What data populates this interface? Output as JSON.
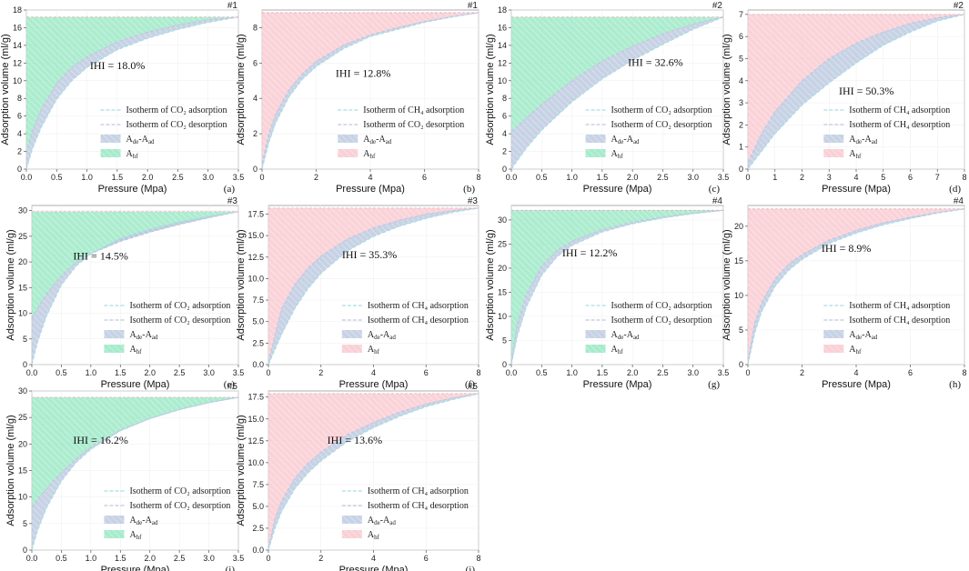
{
  "colors": {
    "co2_fill": "#90e6bf",
    "ch4_fill": "#f8c4cc",
    "hysteresis_fill": "#b9c7de",
    "adsorption_line": "#a8dde4",
    "desorption_line": "#c0c6de"
  },
  "legend_text": {
    "co2_adsorption": "Isotherm of CO₂ adsorption",
    "co2_desorption": "Isotherm of CO₂ desorption",
    "ch4_adsorption": "Isotherm of CH₄ adsorption",
    "ch4_desorption": "Isotherm of CH₄ desorption",
    "ch4_desorption_mislabeled": "Isotherm of CO₂ desorption",
    "hysteresis_area": "Ade-Aad",
    "hf_area": "Ahf"
  },
  "chart_data": [
    {
      "type": "area",
      "panel": "(a)",
      "sample": "#1",
      "gas": "CO2",
      "title": "",
      "xlabel": "Pressure (Mpa)",
      "ylabel": "Adsorption volume (ml/g)",
      "xlim": [
        0,
        3.5
      ],
      "ylim": [
        0,
        18
      ],
      "xticks": [
        "0.0",
        "0.5",
        "1.0",
        "1.5",
        "2.0",
        "2.5",
        "3.0",
        "3.5"
      ],
      "yticks": [
        "0",
        "2",
        "4",
        "6",
        "8",
        "10",
        "12",
        "14",
        "16",
        "18"
      ],
      "annotation": "IHI = 18.0%",
      "series": [
        {
          "name": "Isotherm of CO2 adsorption",
          "x": [
            0,
            0.1,
            0.25,
            0.5,
            0.75,
            1.0,
            1.5,
            2.0,
            2.5,
            3.0,
            3.5
          ],
          "values": [
            0,
            2.3,
            4.8,
            7.9,
            10.0,
            11.5,
            13.5,
            14.8,
            15.8,
            16.6,
            17.2
          ]
        },
        {
          "name": "Isotherm of CO2 desorption",
          "x": [
            0,
            0.1,
            0.25,
            0.5,
            0.75,
            1.0,
            1.5,
            2.0,
            2.5,
            3.0,
            3.5
          ],
          "values": [
            1.8,
            4.3,
            6.8,
            9.7,
            11.5,
            12.7,
            14.4,
            15.5,
            16.3,
            16.9,
            17.2
          ]
        }
      ],
      "legend": [
        "co2_adsorption",
        "co2_desorption",
        "hysteresis_area",
        "hf_area"
      ]
    },
    {
      "type": "area",
      "panel": "(b)",
      "sample": "#1",
      "gas": "CH4",
      "title": "",
      "xlabel": "Pressure (Mpa)",
      "ylabel": "Adsorption volume (ml/g)",
      "xlim": [
        0,
        8
      ],
      "ylim": [
        0,
        9
      ],
      "xticks": [
        "0",
        "2",
        "4",
        "6",
        "8"
      ],
      "yticks": [
        "0",
        "2",
        "4",
        "6",
        "8"
      ],
      "annotation": "IHI = 12.8%",
      "series": [
        {
          "name": "Isotherm of CH4 adsorption",
          "x": [
            0,
            0.25,
            0.5,
            1,
            1.5,
            2,
            3,
            4,
            5,
            6,
            7,
            8
          ],
          "values": [
            0,
            1.5,
            2.6,
            4.1,
            5.1,
            5.8,
            6.8,
            7.5,
            7.9,
            8.3,
            8.6,
            8.85
          ]
        },
        {
          "name": "Isotherm of CH4 desorption",
          "x": [
            0,
            0.25,
            0.5,
            1,
            1.5,
            2,
            3,
            4,
            5,
            6,
            7,
            8
          ],
          "values": [
            0.3,
            2.0,
            3.1,
            4.5,
            5.4,
            6.1,
            7.0,
            7.6,
            8.0,
            8.35,
            8.62,
            8.85
          ]
        }
      ],
      "legend": [
        "ch4_adsorption",
        "ch4_desorption_mislabeled",
        "hysteresis_area",
        "hf_area"
      ]
    },
    {
      "type": "area",
      "panel": "(c)",
      "sample": "#2",
      "gas": "CO2",
      "title": "",
      "xlabel": "Pressure (Mpa)",
      "ylabel": "Adsorption volume (ml/g)",
      "xlim": [
        0,
        3.5
      ],
      "ylim": [
        0,
        18
      ],
      "xticks": [
        "0.0",
        "0.5",
        "1.0",
        "1.5",
        "2.0",
        "2.5",
        "3.0",
        "3.5"
      ],
      "yticks": [
        "0",
        "2",
        "4",
        "6",
        "8",
        "10",
        "12",
        "14",
        "16",
        "18"
      ],
      "annotation": "IHI = 32.6%",
      "series": [
        {
          "name": "Isotherm of CO2 adsorption",
          "x": [
            0,
            0.25,
            0.5,
            1.0,
            1.5,
            2.0,
            2.5,
            3.0,
            3.5
          ],
          "values": [
            0,
            2.4,
            4.4,
            7.6,
            10.2,
            12.3,
            14.1,
            15.8,
            17.2
          ]
        },
        {
          "name": "Isotherm of CO2 desorption",
          "x": [
            0,
            0.25,
            0.5,
            1.0,
            1.5,
            2.0,
            2.5,
            3.0,
            3.5
          ],
          "values": [
            4.2,
            5.8,
            7.3,
            10.0,
            12.2,
            13.9,
            15.3,
            16.4,
            17.2
          ]
        }
      ],
      "legend": [
        "co2_adsorption",
        "co2_desorption",
        "hysteresis_area",
        "hf_area"
      ]
    },
    {
      "type": "area",
      "panel": "(d)",
      "sample": "#2",
      "gas": "CH4",
      "title": "",
      "xlabel": "Pressure (Mpa)",
      "ylabel": "Adsorption volume (ml/g)",
      "xlim": [
        0,
        8
      ],
      "ylim": [
        0,
        7.2
      ],
      "xticks": [
        "0",
        "1",
        "2",
        "3",
        "4",
        "5",
        "6",
        "7",
        "8"
      ],
      "yticks": [
        "0",
        "1",
        "2",
        "3",
        "4",
        "5",
        "6",
        "7"
      ],
      "annotation": "IHI = 50.3%",
      "series": [
        {
          "name": "Isotherm of CH4 adsorption",
          "x": [
            0,
            0.5,
            1,
            2,
            3,
            4,
            5,
            6,
            7,
            8
          ],
          "values": [
            0,
            0.8,
            1.6,
            2.9,
            3.9,
            4.8,
            5.6,
            6.2,
            6.7,
            7.0
          ]
        },
        {
          "name": "Isotherm of CH4 desorption",
          "x": [
            0,
            0.5,
            1,
            2,
            3,
            4,
            5,
            6,
            7,
            8
          ],
          "values": [
            0.3,
            1.6,
            2.6,
            4.0,
            5.0,
            5.7,
            6.2,
            6.6,
            6.85,
            7.0
          ]
        }
      ],
      "legend": [
        "ch4_adsorption",
        "ch4_desorption",
        "hysteresis_area",
        "hf_area"
      ]
    },
    {
      "type": "area",
      "panel": "(e)",
      "sample": "#3",
      "gas": "CO2",
      "title": "",
      "xlabel": "Pressure (Mpa)",
      "ylabel": "Adsorption volume (ml/g)",
      "xlim": [
        0,
        3.5
      ],
      "ylim": [
        0,
        31
      ],
      "xticks": [
        "0.0",
        "0.5",
        "1.0",
        "1.5",
        "2.0",
        "2.5",
        "3.0",
        "3.5"
      ],
      "yticks": [
        "0",
        "5",
        "10",
        "15",
        "20",
        "25",
        "30"
      ],
      "annotation": "IHI = 14.5%",
      "series": [
        {
          "name": "Isotherm of CO2 adsorption",
          "x": [
            0,
            0.1,
            0.25,
            0.5,
            0.75,
            1.0,
            1.5,
            2.0,
            2.5,
            3.0,
            3.5
          ],
          "values": [
            0,
            4.5,
            9.5,
            15.5,
            19.2,
            21.6,
            24.6,
            26.4,
            27.8,
            28.9,
            29.8
          ]
        },
        {
          "name": "Isotherm of CO2 desorption",
          "x": [
            0,
            0.1,
            0.25,
            0.5,
            0.75,
            1.0,
            1.5,
            2.0,
            2.5,
            3.0,
            3.5
          ],
          "values": [
            9.0,
            11.0,
            13.8,
            17.3,
            19.9,
            21.6,
            24.0,
            25.8,
            27.3,
            28.6,
            29.8
          ]
        }
      ],
      "legend": [
        "co2_adsorption",
        "co2_desorption",
        "hysteresis_area",
        "hf_area"
      ]
    },
    {
      "type": "area",
      "panel": "(f)",
      "sample": "#3",
      "gas": "CH4",
      "title": "",
      "xlabel": "Pressure (Mpa)",
      "ylabel": "Adsorption volume (ml/g)",
      "xlim": [
        0,
        8
      ],
      "ylim": [
        0,
        18.5
      ],
      "xticks": [
        "0",
        "2",
        "4",
        "6",
        "8"
      ],
      "yticks": [
        "0.0",
        "2.5",
        "5.0",
        "7.5",
        "10.0",
        "12.5",
        "15.0",
        "17.5"
      ],
      "annotation": "IHI = 35.3%",
      "series": [
        {
          "name": "Isotherm of CH4 adsorption",
          "x": [
            0,
            0.5,
            1,
            1.5,
            2,
            3,
            4,
            5,
            6,
            7,
            8
          ],
          "values": [
            0,
            3.5,
            6.5,
            8.8,
            10.6,
            13.2,
            14.9,
            16.1,
            17.0,
            17.7,
            18.2
          ]
        },
        {
          "name": "Isotherm of CH4 desorption",
          "x": [
            0,
            0.5,
            1,
            1.5,
            2,
            3,
            4,
            5,
            6,
            7,
            8
          ],
          "values": [
            0.3,
            6.5,
            9.3,
            11.2,
            12.6,
            14.6,
            15.9,
            16.8,
            17.5,
            17.9,
            18.2
          ]
        }
      ],
      "legend": [
        "ch4_adsorption",
        "ch4_desorption",
        "hysteresis_area",
        "hf_area"
      ]
    },
    {
      "type": "area",
      "panel": "(g)",
      "sample": "#4",
      "gas": "CO2",
      "title": "",
      "xlabel": "Pressure (Mpa)",
      "ylabel": "Adsorption volume (ml/g)",
      "xlim": [
        0,
        3.5
      ],
      "ylim": [
        0,
        33
      ],
      "xticks": [
        "0.0",
        "0.5",
        "1.0",
        "1.5",
        "2.0",
        "2.5",
        "3.0",
        "3.5"
      ],
      "yticks": [
        "0",
        "5",
        "10",
        "15",
        "20",
        "25",
        "30"
      ],
      "annotation": "IHI = 12.2%",
      "series": [
        {
          "name": "Isotherm of CO2 adsorption",
          "x": [
            0,
            0.1,
            0.25,
            0.5,
            0.75,
            1.0,
            1.5,
            2.0,
            2.5,
            3.0,
            3.5
          ],
          "values": [
            0,
            6.0,
            12.0,
            18.5,
            22.3,
            24.7,
            27.5,
            29.2,
            30.4,
            31.3,
            32.0
          ]
        },
        {
          "name": "Isotherm of CO2 desorption",
          "x": [
            0,
            0.1,
            0.25,
            0.5,
            0.75,
            1.0,
            1.5,
            2.0,
            2.5,
            3.0,
            3.5
          ],
          "values": [
            0.5,
            8.5,
            14.6,
            20.4,
            23.6,
            25.6,
            28.0,
            29.5,
            30.6,
            31.4,
            32.0
          ]
        }
      ],
      "legend": [
        "co2_adsorption",
        "co2_desorption",
        "hysteresis_area",
        "hf_area"
      ]
    },
    {
      "type": "area",
      "panel": "(h)",
      "sample": "#4",
      "gas": "CH4",
      "title": "",
      "xlabel": "Pressure (Mpa)",
      "ylabel": "Adsorption volume (ml/g)",
      "xlim": [
        0,
        8
      ],
      "ylim": [
        0,
        23
      ],
      "xticks": [
        "0",
        "2",
        "4",
        "6",
        "8"
      ],
      "yticks": [
        "0",
        "5",
        "10",
        "15",
        "20"
      ],
      "annotation": "IHI = 8.9%",
      "series": [
        {
          "name": "Isotherm of CH4 adsorption",
          "x": [
            0,
            0.25,
            0.5,
            1,
            1.5,
            2,
            3,
            4,
            5,
            6,
            7,
            8
          ],
          "values": [
            0,
            4.5,
            7.6,
            11.3,
            13.6,
            15.2,
            17.5,
            19.0,
            20.2,
            21.1,
            21.9,
            22.5
          ]
        },
        {
          "name": "Isotherm of CH4 desorption",
          "x": [
            0,
            0.25,
            0.5,
            1,
            1.5,
            2,
            3,
            4,
            5,
            6,
            7,
            8
          ],
          "values": [
            0.5,
            6.0,
            8.9,
            12.4,
            14.5,
            15.9,
            18.0,
            19.4,
            20.5,
            21.3,
            22.0,
            22.5
          ]
        }
      ],
      "legend": [
        "ch4_adsorption",
        "ch4_desorption",
        "hysteresis_area",
        "hf_area"
      ]
    },
    {
      "type": "area",
      "panel": "(i)",
      "sample": "#5",
      "gas": "CO2",
      "title": "",
      "xlabel": "Pressure (Mpa)",
      "ylabel": "Adsorption volume (ml/g)",
      "xlim": [
        0,
        3.5
      ],
      "ylim": [
        0,
        30
      ],
      "xticks": [
        "0.0",
        "0.5",
        "1.0",
        "1.5",
        "2.0",
        "2.5",
        "3.0",
        "3.5"
      ],
      "yticks": [
        "0",
        "5",
        "10",
        "15",
        "20",
        "25",
        "30"
      ],
      "annotation": "IHI = 16.2%",
      "series": [
        {
          "name": "Isotherm of CO2 adsorption",
          "x": [
            0,
            0.1,
            0.25,
            0.5,
            0.75,
            1.0,
            1.5,
            2.0,
            2.5,
            3.0,
            3.5
          ],
          "values": [
            0,
            3.8,
            8.0,
            13.0,
            16.5,
            19.0,
            22.5,
            24.8,
            26.5,
            27.8,
            28.8
          ]
        },
        {
          "name": "Isotherm of CO2 desorption",
          "x": [
            0,
            0.1,
            0.25,
            0.5,
            0.75,
            1.0,
            1.5,
            2.0,
            2.5,
            3.0,
            3.5
          ],
          "values": [
            8.0,
            9.6,
            11.6,
            14.6,
            17.2,
            19.4,
            22.6,
            24.8,
            26.5,
            27.8,
            28.8
          ]
        }
      ],
      "legend": [
        "co2_adsorption",
        "co2_desorption",
        "hysteresis_area",
        "hf_area"
      ]
    },
    {
      "type": "area",
      "panel": "(j)",
      "sample": "#5",
      "gas": "CH4",
      "title": "",
      "xlabel": "Pressure (Mpa)",
      "ylabel": "Adsorption volume (ml/g)",
      "xlim": [
        0,
        8
      ],
      "ylim": [
        0,
        18.2
      ],
      "xticks": [
        "0",
        "2",
        "4",
        "6",
        "8"
      ],
      "yticks": [
        "0.0",
        "2.5",
        "5.0",
        "7.5",
        "10.0",
        "12.5",
        "15.0",
        "17.5"
      ],
      "annotation": "IHI = 13.6%",
      "series": [
        {
          "name": "Isotherm of CH4 adsorption",
          "x": [
            0,
            0.25,
            0.5,
            1,
            1.5,
            2,
            3,
            4,
            5,
            6,
            7,
            8
          ],
          "values": [
            0,
            2.5,
            4.4,
            7.0,
            8.8,
            10.2,
            12.4,
            14.0,
            15.3,
            16.4,
            17.2,
            17.9
          ]
        },
        {
          "name": "Isotherm of CH4 desorption",
          "x": [
            0,
            0.25,
            0.5,
            1,
            1.5,
            2,
            3,
            4,
            5,
            6,
            7,
            8
          ],
          "values": [
            0.3,
            3.6,
            5.6,
            8.2,
            9.9,
            11.2,
            13.2,
            14.6,
            15.8,
            16.7,
            17.4,
            17.9
          ]
        }
      ],
      "legend": [
        "ch4_adsorption",
        "ch4_desorption",
        "hysteresis_area",
        "hf_area"
      ]
    }
  ]
}
